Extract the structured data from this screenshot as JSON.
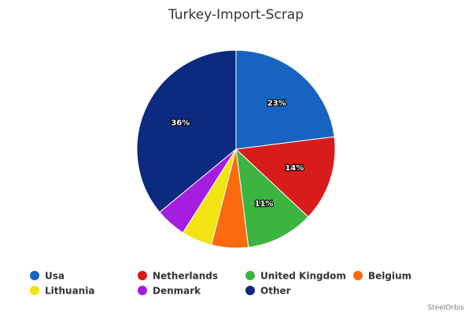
{
  "chart_data": {
    "type": "pie",
    "title": "Turkey-Import-Scrap",
    "categories": [
      "Usa",
      "Netherlands",
      "United Kingdom",
      "Belgium",
      "Lithuania",
      "Denmark",
      "Other"
    ],
    "values": [
      23,
      14,
      11,
      6,
      5,
      5,
      36
    ],
    "value_labels": [
      "23%",
      "14%",
      "11%",
      null,
      null,
      null,
      "36%"
    ],
    "colors": [
      "#1763c0",
      "#d81b1b",
      "#3cb440",
      "#fb6a0c",
      "#f2e313",
      "#a51ee0",
      "#0b2a80"
    ],
    "credit": "SteelOrbis"
  }
}
